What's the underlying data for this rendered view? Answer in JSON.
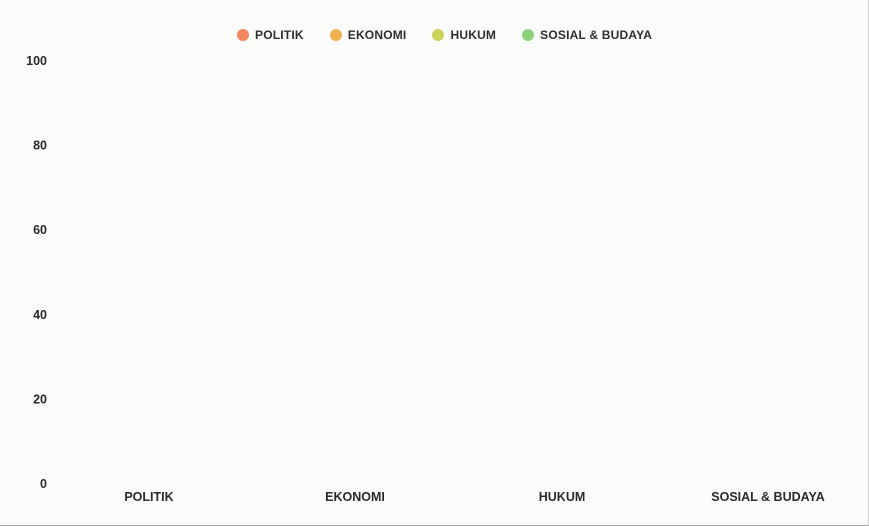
{
  "chart_data": {
    "type": "bar",
    "categories": [
      "POLITIK",
      "EKONOMI",
      "HUKUM",
      "SOSIAL & BUDAYA"
    ],
    "series": [
      {
        "name": "POLITIK",
        "color": "#f3855f",
        "values": [
          0,
          0,
          0,
          0
        ]
      },
      {
        "name": "EKONOMI",
        "color": "#f0b24e",
        "values": [
          0,
          0,
          0,
          0
        ]
      },
      {
        "name": "HUKUM",
        "color": "#cdd35a",
        "values": [
          0,
          0,
          0,
          0
        ]
      },
      {
        "name": "SOSIAL & BUDAYA",
        "color": "#8fd07a",
        "values": [
          0,
          0,
          0,
          0
        ]
      }
    ],
    "ylim": [
      0,
      100
    ],
    "yticks": [
      "0",
      "20",
      "40",
      "60",
      "80",
      "100"
    ],
    "grid": false,
    "legend_position": "top-center"
  }
}
